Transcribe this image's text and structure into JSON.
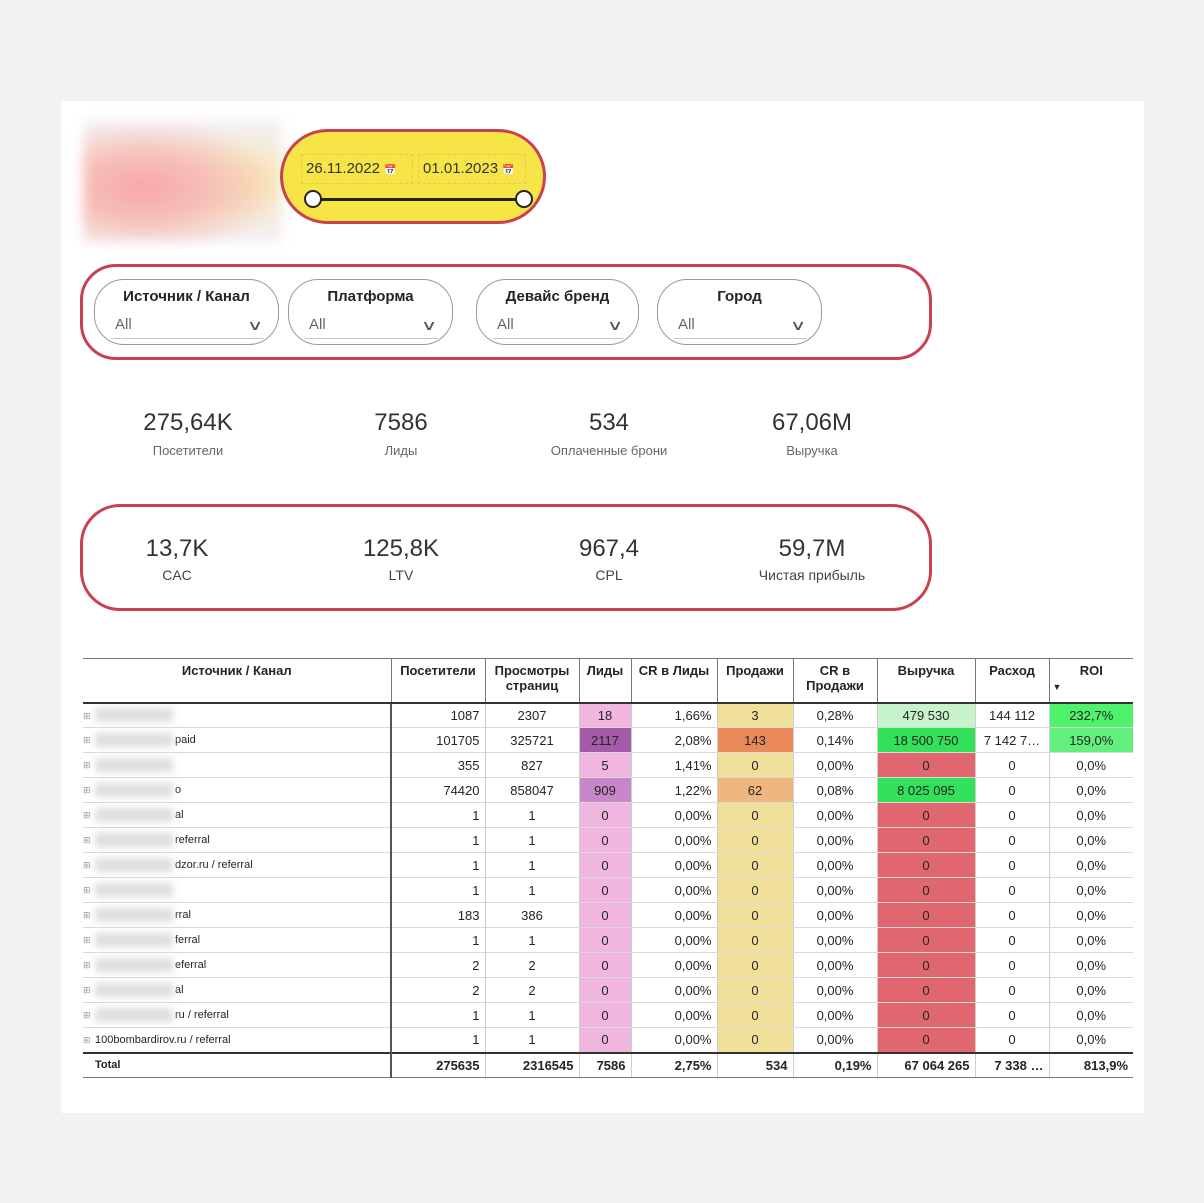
{
  "date_slicer": {
    "start": "26.11.2022",
    "end": "01.01.2023"
  },
  "filters": [
    {
      "label": "Источник / Канал",
      "value": "All"
    },
    {
      "label": "Платформа",
      "value": "All"
    },
    {
      "label": "Девайс бренд",
      "value": "All"
    },
    {
      "label": "Город",
      "value": "All"
    }
  ],
  "kpi_row1": [
    {
      "value": "275,64K",
      "label": "Посетители"
    },
    {
      "value": "7586",
      "label": "Лиды"
    },
    {
      "value": "534",
      "label": "Оплаченные брони"
    },
    {
      "value": "67,06M",
      "label": "Выручка"
    }
  ],
  "kpi_row2": [
    {
      "value": "13,7K",
      "label": "CAC"
    },
    {
      "value": "125,8K",
      "label": "LTV"
    },
    {
      "value": "967,4",
      "label": "CPL"
    },
    {
      "value": "59,7M",
      "label": "Чистая прибыль"
    }
  ],
  "table": {
    "headers": [
      "Источник / Канал",
      "Посетители",
      "Просмотры страниц",
      "Лиды",
      "CR в Лиды",
      "Продажи",
      "CR в Продажи",
      "Выручка",
      "Расход",
      "ROI"
    ],
    "sort_indicator": "▼",
    "colors": {
      "leads_light": "#f1b6df",
      "leads_mid": "#c787c8",
      "leads_dark": "#a45ba9",
      "sales_zero": "#f0e09a",
      "sales_mid": "#efb77f",
      "sales_high": "#ea8a5b",
      "rev_zero": "#e0676f",
      "rev_low": "#c6f3cc",
      "rev_high": "#33e05a",
      "roi_high": "#4ff36b",
      "roi_mid": "#63ef7e"
    },
    "rows": [
      {
        "source": "",
        "visitors": "1087",
        "views": "2307",
        "leads": "18",
        "cr_leads": "1,66%",
        "sales": "3",
        "cr_sales": "0,28%",
        "revenue": "479 530",
        "cost": "144 112",
        "roi": "232,7%"
      },
      {
        "source": "paid",
        "visitors": "101705",
        "views": "325721",
        "leads": "2117",
        "cr_leads": "2,08%",
        "sales": "143",
        "cr_sales": "0,14%",
        "revenue": "18 500 750",
        "cost": "7 142 7…",
        "roi": "159,0%"
      },
      {
        "source": "",
        "visitors": "355",
        "views": "827",
        "leads": "5",
        "cr_leads": "1,41%",
        "sales": "0",
        "cr_sales": "0,00%",
        "revenue": "0",
        "cost": "0",
        "roi": "0,0%"
      },
      {
        "source": "o",
        "visitors": "74420",
        "views": "858047",
        "leads": "909",
        "cr_leads": "1,22%",
        "sales": "62",
        "cr_sales": "0,08%",
        "revenue": "8 025 095",
        "cost": "0",
        "roi": "0,0%"
      },
      {
        "source": "al",
        "visitors": "1",
        "views": "1",
        "leads": "0",
        "cr_leads": "0,00%",
        "sales": "0",
        "cr_sales": "0,00%",
        "revenue": "0",
        "cost": "0",
        "roi": "0,0%"
      },
      {
        "source": "referral",
        "visitors": "1",
        "views": "1",
        "leads": "0",
        "cr_leads": "0,00%",
        "sales": "0",
        "cr_sales": "0,00%",
        "revenue": "0",
        "cost": "0",
        "roi": "0,0%"
      },
      {
        "source": "dzor.ru / referral",
        "visitors": "1",
        "views": "1",
        "leads": "0",
        "cr_leads": "0,00%",
        "sales": "0",
        "cr_sales": "0,00%",
        "revenue": "0",
        "cost": "0",
        "roi": "0,0%"
      },
      {
        "source": "",
        "visitors": "1",
        "views": "1",
        "leads": "0",
        "cr_leads": "0,00%",
        "sales": "0",
        "cr_sales": "0,00%",
        "revenue": "0",
        "cost": "0",
        "roi": "0,0%"
      },
      {
        "source": "rral",
        "visitors": "183",
        "views": "386",
        "leads": "0",
        "cr_leads": "0,00%",
        "sales": "0",
        "cr_sales": "0,00%",
        "revenue": "0",
        "cost": "0",
        "roi": "0,0%"
      },
      {
        "source": "ferral",
        "visitors": "1",
        "views": "1",
        "leads": "0",
        "cr_leads": "0,00%",
        "sales": "0",
        "cr_sales": "0,00%",
        "revenue": "0",
        "cost": "0",
        "roi": "0,0%"
      },
      {
        "source": "eferral",
        "visitors": "2",
        "views": "2",
        "leads": "0",
        "cr_leads": "0,00%",
        "sales": "0",
        "cr_sales": "0,00%",
        "revenue": "0",
        "cost": "0",
        "roi": "0,0%"
      },
      {
        "source": "al",
        "visitors": "2",
        "views": "2",
        "leads": "0",
        "cr_leads": "0,00%",
        "sales": "0",
        "cr_sales": "0,00%",
        "revenue": "0",
        "cost": "0",
        "roi": "0,0%"
      },
      {
        "source": "ru / referral",
        "visitors": "1",
        "views": "1",
        "leads": "0",
        "cr_leads": "0,00%",
        "sales": "0",
        "cr_sales": "0,00%",
        "revenue": "0",
        "cost": "0",
        "roi": "0,0%"
      },
      {
        "source": "100bombardirov.ru / referral",
        "visitors": "1",
        "views": "1",
        "leads": "0",
        "cr_leads": "0,00%",
        "sales": "0",
        "cr_sales": "0,00%",
        "revenue": "0",
        "cost": "0",
        "roi": "0,0%"
      }
    ],
    "total": {
      "source": "Total",
      "visitors": "275635",
      "views": "2316545",
      "leads": "7586",
      "cr_leads": "2,75%",
      "sales": "534",
      "cr_sales": "0,19%",
      "revenue": "67 064 265",
      "cost": "7 338 …",
      "roi": "813,9%"
    }
  }
}
